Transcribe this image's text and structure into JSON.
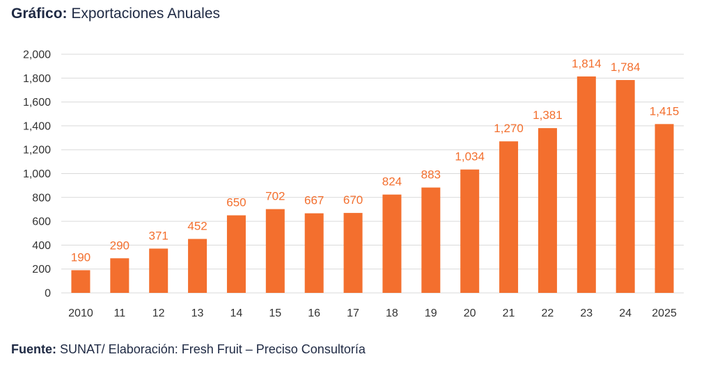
{
  "header": {
    "title_lead": "Gráfico:",
    "title_text": "Exportaciones Anuales"
  },
  "footer": {
    "source_lead": "Fuente:",
    "source_text": "SUNAT/ Elaboración: Fresh Fruit – Preciso Consultoría"
  },
  "colors": {
    "bar": "#f36f2e",
    "grid": "#d9d9d9",
    "text": "#1f2a44"
  },
  "chart_data": {
    "type": "bar",
    "categories": [
      "2010",
      "11",
      "12",
      "13",
      "14",
      "15",
      "16",
      "17",
      "18",
      "19",
      "20",
      "21",
      "22",
      "23",
      "24",
      "2025"
    ],
    "values": [
      190,
      290,
      371,
      452,
      650,
      702,
      667,
      670,
      824,
      883,
      1034,
      1270,
      1381,
      1814,
      1784,
      1415
    ],
    "value_labels": [
      "190",
      "290",
      "371",
      "452",
      "650",
      "702",
      "667",
      "670",
      "824",
      "883",
      "1,034",
      "1,270",
      "1,381",
      "1,814",
      "1,784",
      "1,415"
    ],
    "y_ticks": [
      0,
      200,
      400,
      600,
      800,
      1000,
      1200,
      1400,
      1600,
      1800,
      2000
    ],
    "y_tick_labels": [
      "0",
      "200",
      "400",
      "600",
      "800",
      "1,000",
      "1,200",
      "1,400",
      "1,600",
      "1,800",
      "2,000"
    ],
    "ylim": [
      0,
      2000
    ],
    "grid": true,
    "legend": false
  }
}
